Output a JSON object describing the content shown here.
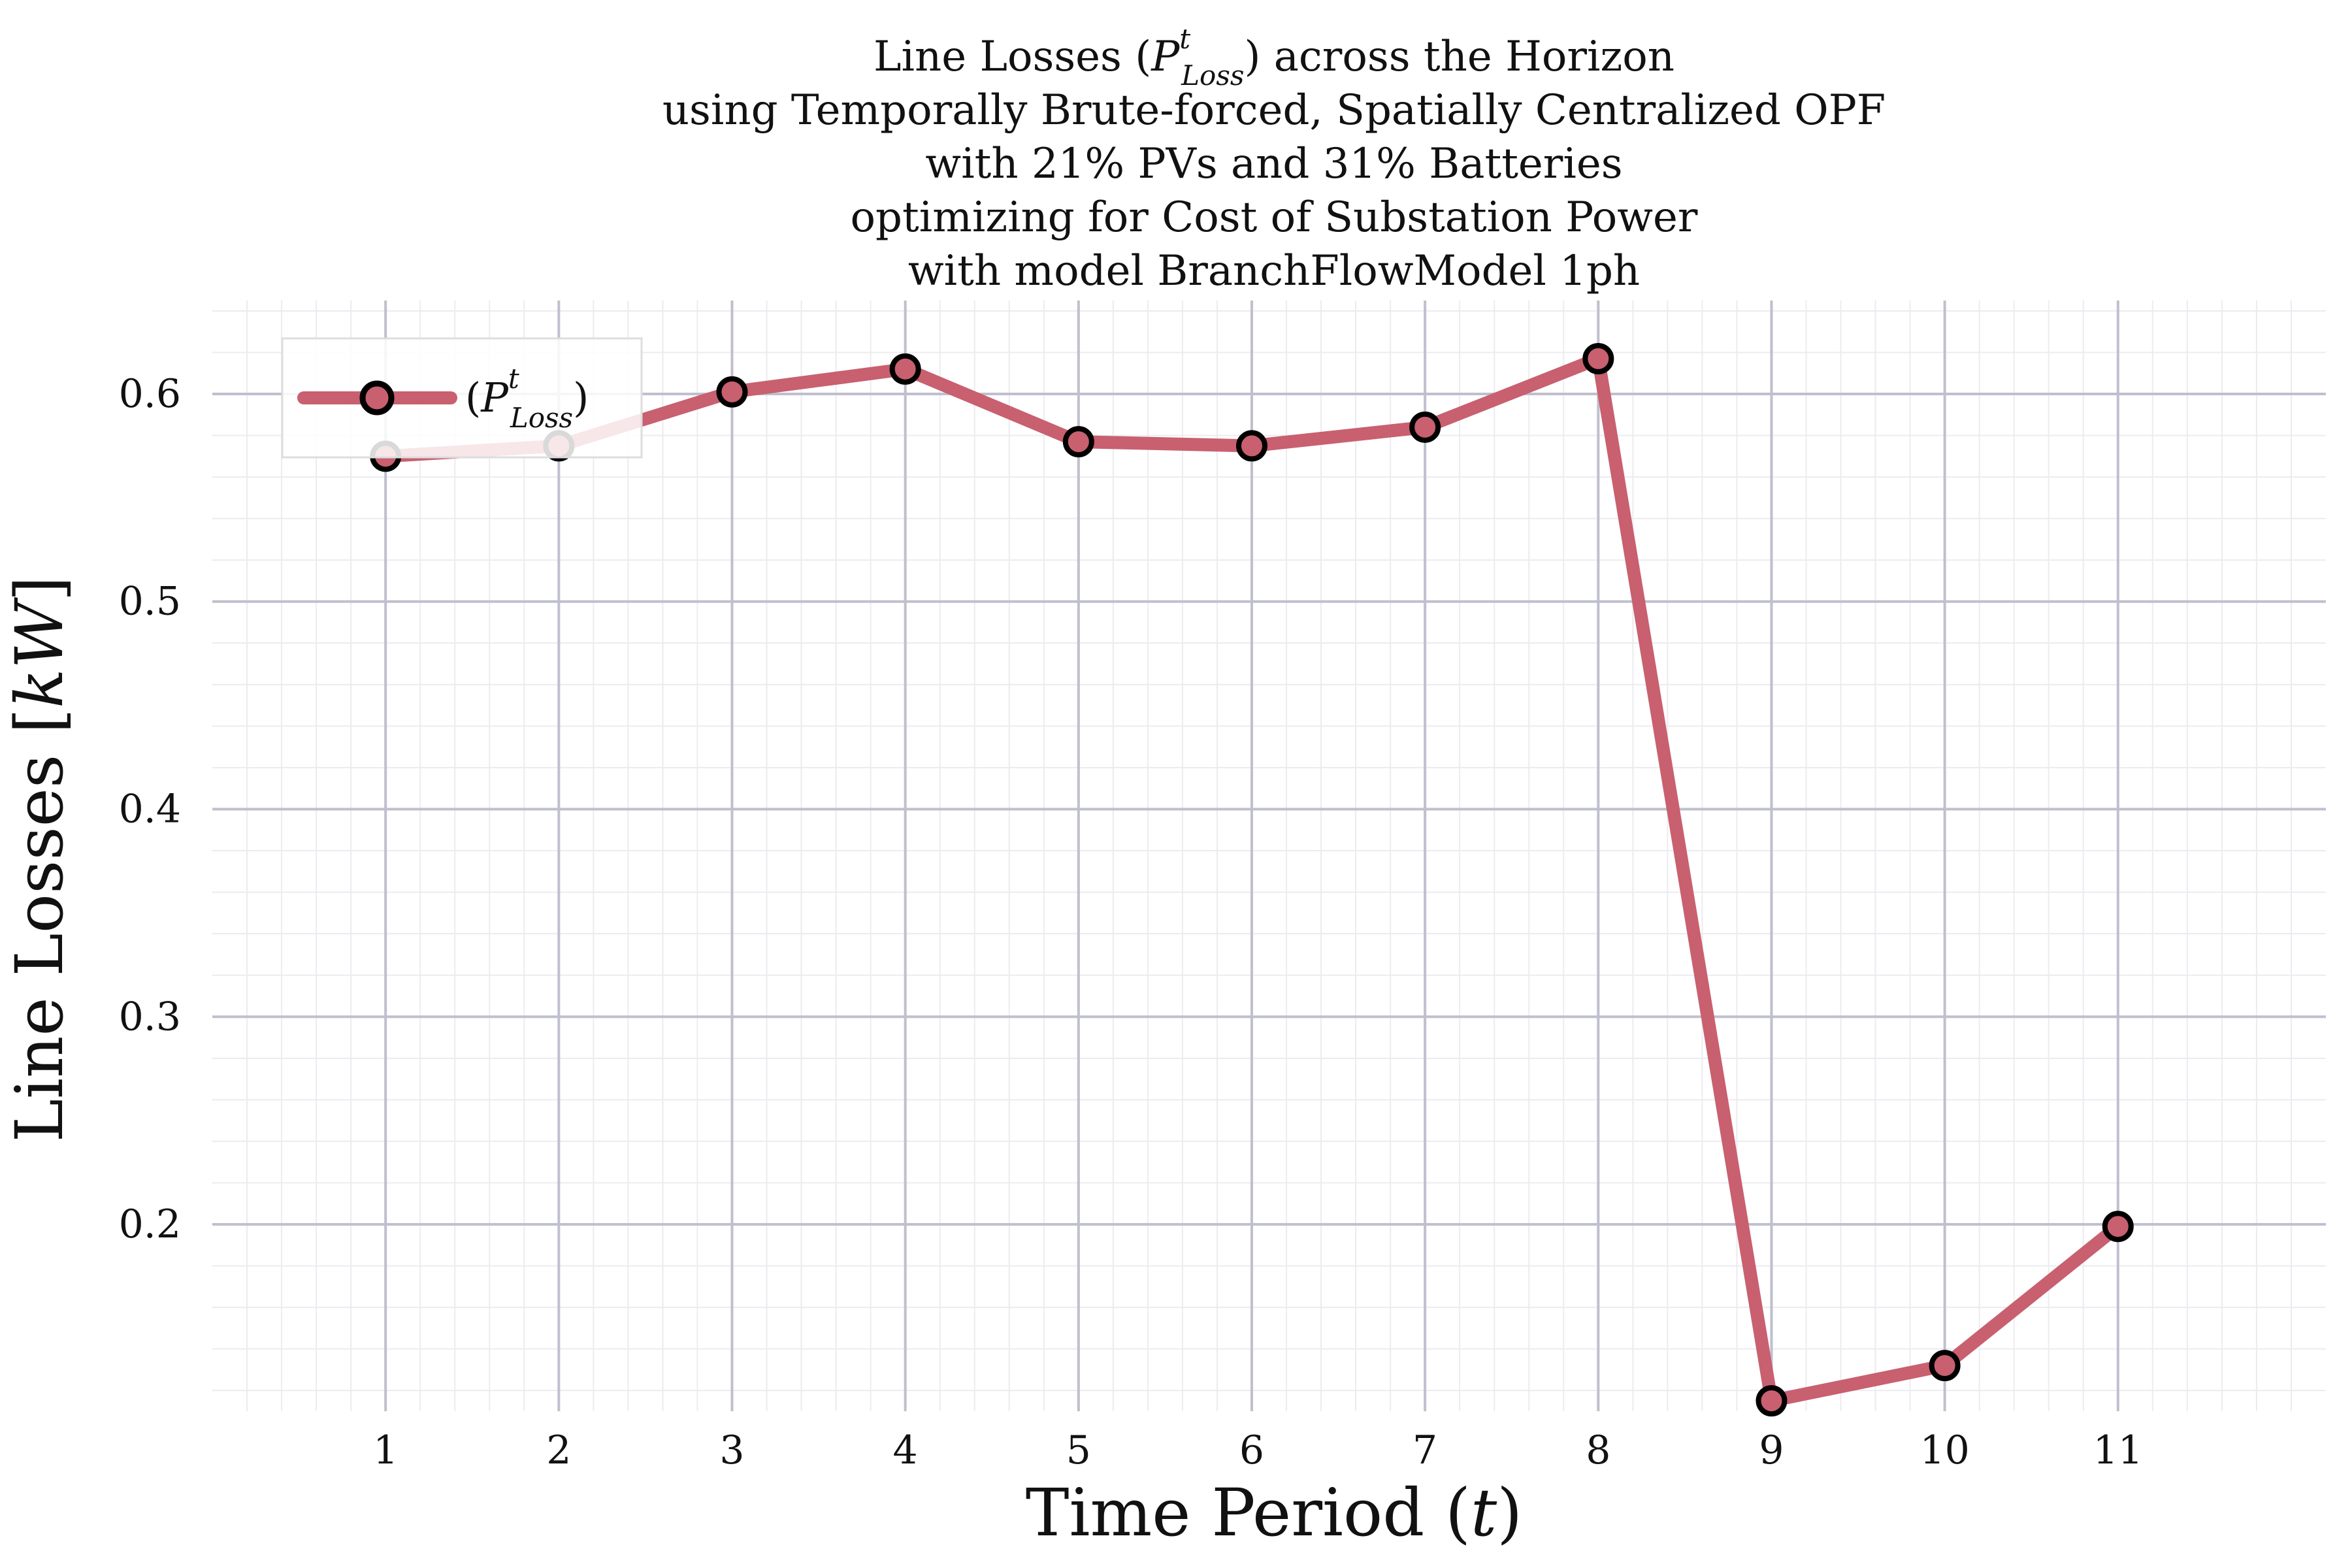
{
  "chart_data": {
    "type": "line",
    "title_lines": [
      "Line Losses (P",
      "using Temporally Brute-forced, Spatially Centralized OPF",
      "with 21% PVs and 31% Batteries",
      "optimizing for Cost of Substation Power",
      "with model BranchFlowModel 1ph"
    ],
    "title_first_line": {
      "prefix": "Line Losses (",
      "symbol": "P",
      "superscript": "t",
      "subscript": "Loss",
      "suffix": ") across the Horizon"
    },
    "xlabel": {
      "text": "Time Period (",
      "var": "t",
      "close": ")"
    },
    "ylabel": {
      "text": "Line Losses [",
      "unit": "kW",
      "close": "]"
    },
    "x": [
      1,
      2,
      3,
      4,
      5,
      6,
      7,
      8,
      9,
      10,
      11
    ],
    "x_ticks": [
      "1",
      "2",
      "3",
      "4",
      "5",
      "6",
      "7",
      "8",
      "9",
      "10",
      "11"
    ],
    "y_ticks": [
      0.2,
      0.3,
      0.4,
      0.5,
      0.6
    ],
    "y_tick_labels": [
      "0.2",
      "0.3",
      "0.4",
      "0.5",
      "0.6"
    ],
    "xlim": [
      0,
      12.2
    ],
    "ylim": [
      0.11,
      0.645
    ],
    "grid": true,
    "minor_grid": true,
    "legend_position": "top-left",
    "series": [
      {
        "name": "(P",
        "legend_label": {
          "open": "(",
          "symbol": "P",
          "superscript": "t",
          "subscript": "Loss",
          "close": ")"
        },
        "values": [
          0.57,
          0.575,
          0.601,
          0.612,
          0.577,
          0.575,
          0.584,
          0.617,
          0.115,
          0.132,
          0.199
        ],
        "color": "#c8606f"
      }
    ]
  },
  "colors": {
    "line": "#c8606f",
    "marker_edge": "#000000",
    "major_grid": "#bfbfcf",
    "minor_grid": "#ececf0"
  }
}
